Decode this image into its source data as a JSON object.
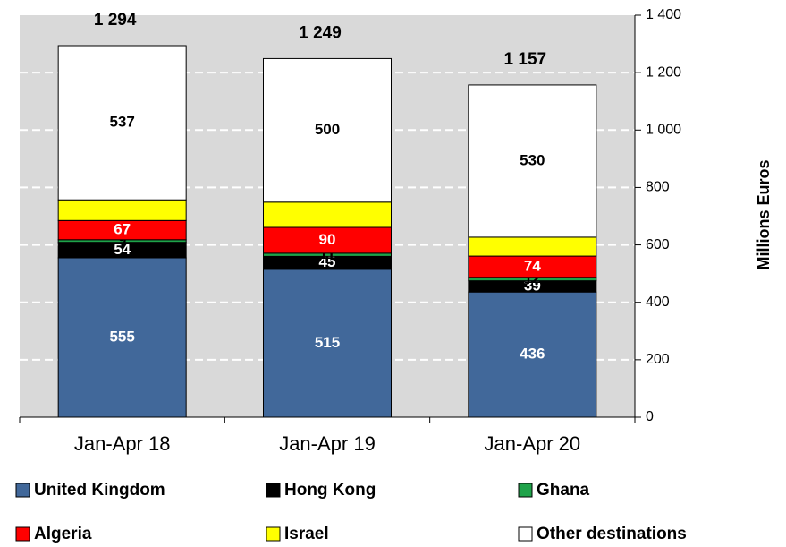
{
  "chart_data": {
    "type": "stacked-bar",
    "y_label": "Millions Euros",
    "categories": [
      "Jan-Apr 18",
      "Jan-Apr 19",
      "Jan-Apr 20"
    ],
    "series": [
      {
        "name": "United Kingdom",
        "color": "#41689a",
        "label_color": "#ffffff",
        "show_labels": true,
        "values": [
          555,
          515,
          436
        ]
      },
      {
        "name": "Hong Kong",
        "color": "#000000",
        "label_color": "#ffffff",
        "show_labels": true,
        "values": [
          54,
          45,
          39
        ]
      },
      {
        "name": "Ghana",
        "color": "#1fa34a",
        "label_color": "#000000",
        "show_labels": true,
        "values": [
          9,
          11,
          12
        ]
      },
      {
        "name": "Algeria",
        "color": "#ff0000",
        "label_color": "#ffffff",
        "show_labels": true,
        "values": [
          67,
          90,
          74
        ]
      },
      {
        "name": "Israel",
        "color": "#ffff00",
        "label_color": "#000000",
        "show_labels": false,
        "values": [
          72,
          88,
          66
        ]
      },
      {
        "name": "Other destinations",
        "color": "#ffffff",
        "label_color": "#000000",
        "show_labels": true,
        "values": [
          537,
          500,
          530
        ]
      }
    ],
    "totals": {
      "values": [
        1294,
        1249,
        1157
      ],
      "value_labels": [
        "1 294",
        "1 249",
        "1 157"
      ]
    },
    "ylim": [
      0,
      1400
    ],
    "yticks": [
      0,
      200,
      400,
      600,
      800,
      {
        "value": 1000,
        "label": "1 000"
      },
      {
        "value": 1200,
        "label": "1 200"
      },
      {
        "value": 1400,
        "label": "1 400"
      }
    ],
    "grid": true,
    "legend": "bottom"
  }
}
